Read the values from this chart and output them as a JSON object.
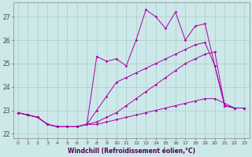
{
  "xlabel": "Windchill (Refroidissement éolien,°C)",
  "background_color": "#cce8e8",
  "grid_color": "#aacccc",
  "line_color": "#aa00aa",
  "x": [
    0,
    1,
    2,
    3,
    4,
    5,
    6,
    7,
    8,
    9,
    10,
    11,
    12,
    13,
    14,
    15,
    16,
    17,
    18,
    19,
    20,
    21,
    22,
    23
  ],
  "ylim": [
    21.8,
    27.6
  ],
  "xlim": [
    -0.5,
    23.5
  ],
  "yticks": [
    22,
    23,
    24,
    25,
    26,
    27
  ],
  "series1": [
    22.9,
    22.8,
    22.7,
    22.4,
    22.3,
    22.3,
    22.3,
    22.4,
    22.4,
    22.5,
    22.6,
    22.7,
    22.8,
    22.9,
    23.0,
    23.1,
    23.2,
    23.3,
    23.4,
    23.5,
    23.5,
    23.3,
    23.1,
    23.1
  ],
  "series2": [
    22.9,
    22.8,
    22.7,
    22.4,
    22.3,
    22.3,
    22.3,
    22.4,
    22.5,
    22.7,
    22.9,
    23.2,
    23.5,
    23.8,
    24.1,
    24.4,
    24.7,
    25.0,
    25.2,
    25.4,
    25.5,
    23.2,
    23.1,
    23.1
  ],
  "series3": [
    22.9,
    22.8,
    22.7,
    22.4,
    22.3,
    22.3,
    22.3,
    22.4,
    23.0,
    23.6,
    24.2,
    24.4,
    24.6,
    24.8,
    25.0,
    25.2,
    25.4,
    25.6,
    25.8,
    25.9,
    24.9,
    23.2,
    23.1,
    23.1
  ],
  "series4": [
    22.9,
    22.8,
    22.7,
    22.4,
    22.3,
    22.3,
    22.3,
    22.4,
    25.3,
    25.1,
    25.2,
    24.9,
    26.0,
    27.3,
    27.0,
    26.5,
    27.2,
    26.0,
    26.6,
    26.7,
    24.9,
    23.2,
    23.1,
    23.1
  ]
}
